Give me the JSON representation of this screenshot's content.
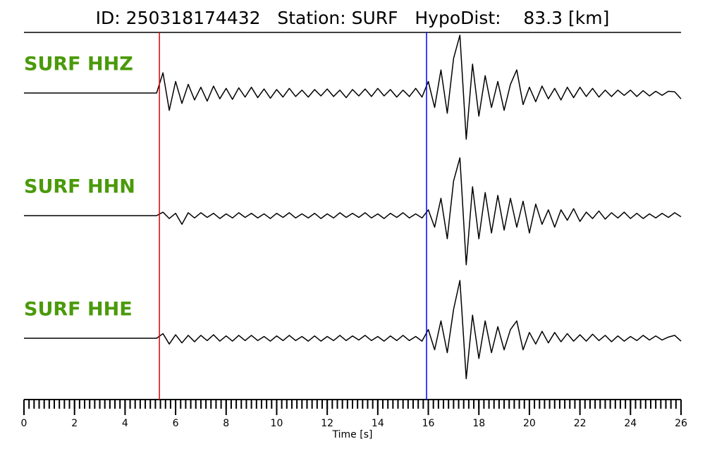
{
  "chart_data": {
    "type": "seismogram",
    "title": "ID: 250318174432   Station: SURF   HypoDist:    83.3 [km]",
    "xlabel": "Time [s]",
    "xlim": [
      0,
      26
    ],
    "xticks": [
      0,
      2,
      4,
      6,
      8,
      10,
      12,
      14,
      16,
      18,
      20,
      22,
      24,
      26
    ],
    "minor_tick_interval": 0.2,
    "label_color": "#4a9a0a",
    "picks": [
      {
        "x": 5.36,
        "color": "#e00000"
      },
      {
        "x": 15.93,
        "color": "#0000ff"
      }
    ],
    "x": [
      0,
      0.25,
      0.5,
      0.75,
      1,
      1.25,
      1.5,
      1.75,
      2,
      2.25,
      2.5,
      2.75,
      3,
      3.25,
      3.5,
      3.75,
      4,
      4.25,
      4.5,
      4.75,
      5,
      5.25,
      5.5,
      5.75,
      6,
      6.25,
      6.5,
      6.75,
      7,
      7.25,
      7.5,
      7.75,
      8,
      8.25,
      8.5,
      8.75,
      9,
      9.25,
      9.5,
      9.75,
      10,
      10.25,
      10.5,
      10.75,
      11,
      11.25,
      11.5,
      11.75,
      12,
      12.25,
      12.5,
      12.75,
      13,
      13.25,
      13.5,
      13.75,
      14,
      14.25,
      14.5,
      14.75,
      15,
      15.25,
      15.5,
      15.75,
      16,
      16.25,
      16.5,
      16.75,
      17,
      17.25,
      17.5,
      17.75,
      18,
      18.25,
      18.5,
      18.75,
      19,
      19.25,
      19.5,
      19.75,
      20,
      20.25,
      20.5,
      20.75,
      21,
      21.25,
      21.5,
      21.75,
      22,
      22.25,
      22.5,
      22.75,
      23,
      23.25,
      23.5,
      23.75,
      24,
      24.25,
      24.5,
      24.75,
      25,
      25.25,
      25.5,
      25.75,
      26
    ],
    "series": [
      {
        "name": "SURF HHZ",
        "color": "#000000",
        "values": [
          0,
          0,
          0,
          0,
          0,
          0,
          0,
          0,
          0,
          0,
          0,
          0,
          0,
          0,
          0,
          0,
          0,
          0,
          0,
          0,
          0,
          0,
          0.35,
          -0.3,
          0.2,
          -0.18,
          0.15,
          -0.12,
          0.1,
          -0.14,
          0.12,
          -0.1,
          0.08,
          -0.11,
          0.09,
          -0.07,
          0.1,
          -0.08,
          0.07,
          -0.09,
          0.06,
          -0.07,
          0.08,
          -0.06,
          0.05,
          -0.07,
          0.06,
          -0.05,
          0.07,
          -0.06,
          0.05,
          -0.08,
          0.06,
          -0.05,
          0.07,
          -0.06,
          0.08,
          -0.05,
          0.06,
          -0.07,
          0.05,
          -0.06,
          0.08,
          -0.07,
          0.2,
          -0.25,
          0.4,
          -0.35,
          0.6,
          1.0,
          -0.8,
          0.5,
          -0.4,
          0.3,
          -0.25,
          0.2,
          -0.3,
          0.15,
          0.4,
          -0.2,
          0.1,
          -0.15,
          0.12,
          -0.1,
          0.08,
          -0.12,
          0.1,
          -0.08,
          0.1,
          -0.06,
          0.08,
          -0.07,
          0.05,
          -0.06,
          0.05,
          -0.04,
          0.05,
          -0.06,
          0.04,
          -0.05,
          0.03,
          -0.04,
          0.03,
          0.02,
          -0.1
        ]
      },
      {
        "name": "SURF HHN",
        "color": "#000000",
        "values": [
          0,
          0,
          0,
          0,
          0,
          0,
          0,
          0,
          0,
          0,
          0,
          0,
          0,
          0,
          0,
          0,
          0,
          0,
          0,
          0,
          0,
          0,
          0.06,
          -0.05,
          0.04,
          -0.15,
          0.05,
          -0.04,
          0.05,
          -0.03,
          0.04,
          -0.05,
          0.03,
          -0.04,
          0.05,
          -0.03,
          0.04,
          -0.04,
          0.03,
          -0.05,
          0.04,
          -0.03,
          0.05,
          -0.04,
          0.03,
          -0.04,
          0.04,
          -0.05,
          0.03,
          -0.04,
          0.05,
          -0.03,
          0.04,
          -0.03,
          0.05,
          -0.04,
          0.03,
          -0.05,
          0.04,
          -0.03,
          0.05,
          -0.04,
          0.03,
          -0.04,
          0.1,
          -0.2,
          0.3,
          -0.4,
          0.6,
          1.0,
          -0.85,
          0.5,
          -0.4,
          0.4,
          -0.3,
          0.35,
          -0.25,
          0.3,
          -0.2,
          0.25,
          -0.3,
          0.2,
          -0.15,
          0.1,
          -0.2,
          0.1,
          -0.08,
          0.12,
          -0.1,
          0.06,
          -0.05,
          0.08,
          -0.06,
          0.05,
          -0.04,
          0.06,
          -0.05,
          0.04,
          -0.05,
          0.03,
          -0.04,
          0.04,
          -0.03,
          0.05,
          -0.02
        ]
      },
      {
        "name": "SURF HHE",
        "color": "#000000",
        "values": [
          0,
          0,
          0,
          0,
          0,
          0,
          0,
          0,
          0,
          0,
          0,
          0,
          0,
          0,
          0,
          0,
          0,
          0,
          0,
          0,
          0,
          0,
          0.08,
          -0.1,
          0.06,
          -0.08,
          0.05,
          -0.06,
          0.05,
          -0.04,
          0.06,
          -0.05,
          0.04,
          -0.05,
          0.05,
          -0.04,
          0.05,
          -0.04,
          0.03,
          -0.05,
          0.04,
          -0.04,
          0.05,
          -0.04,
          0.03,
          -0.05,
          0.04,
          -0.05,
          0.03,
          -0.04,
          0.05,
          -0.04,
          0.04,
          -0.03,
          0.05,
          -0.04,
          0.03,
          -0.05,
          0.04,
          -0.04,
          0.05,
          -0.04,
          0.03,
          -0.05,
          0.15,
          -0.2,
          0.3,
          -0.25,
          0.5,
          1.0,
          -0.7,
          0.4,
          -0.35,
          0.3,
          -0.25,
          0.2,
          -0.2,
          0.15,
          0.3,
          -0.2,
          0.1,
          -0.1,
          0.12,
          -0.08,
          0.1,
          -0.06,
          0.08,
          -0.05,
          0.06,
          -0.05,
          0.07,
          -0.04,
          0.05,
          -0.06,
          0.04,
          -0.05,
          0.03,
          -0.04,
          0.05,
          -0.03,
          0.04,
          -0.03,
          0.02,
          0.05,
          -0.05
        ]
      }
    ]
  }
}
